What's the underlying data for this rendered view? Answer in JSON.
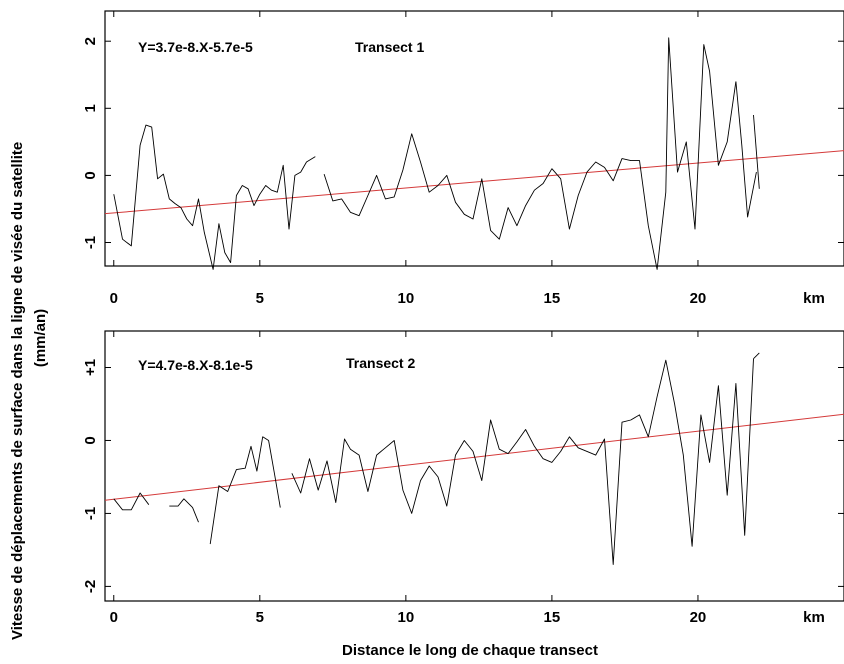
{
  "ylabel_line1": "Vitesse de déplacements de surface dans la ligne de visée du satellite",
  "ylabel_line2": "(mm/an)",
  "xlabel": "Distance le long de chaque transect",
  "colors": {
    "series": "#000000",
    "trend": "#d43a3a"
  },
  "chart_data": [
    {
      "type": "line",
      "title": "Transect 1",
      "equation": "Y=3.7e-8.X-5.7e-5",
      "x_unit": "km",
      "xlim": [
        -0.3,
        25
      ],
      "ylim": [
        -1.35,
        2.45
      ],
      "x_ticks": [
        0,
        5,
        10,
        15,
        20
      ],
      "x_tick_labels": [
        "0",
        "5",
        "10",
        "15",
        "20"
      ],
      "y_ticks": [
        -1,
        0,
        1,
        2
      ],
      "y_tick_labels": [
        "-1",
        "0",
        "1",
        "2"
      ],
      "trend": {
        "x": [
          -0.3,
          25
        ],
        "y": [
          -0.57,
          0.37
        ]
      },
      "segments": [
        {
          "x": [
            0,
            0.3,
            0.6,
            0.9,
            1.1,
            1.3,
            1.5,
            1.7,
            1.9,
            2.1,
            2.3,
            2.5,
            2.7,
            2.9,
            3.1,
            3.4,
            3.6,
            3.8,
            4.0,
            4.2,
            4.4,
            4.6,
            4.8,
            5.0,
            5.2,
            5.4,
            5.6,
            5.8,
            6.0,
            6.2,
            6.4,
            6.6,
            6.9
          ],
          "y": [
            -0.28,
            -0.95,
            -1.05,
            0.45,
            0.75,
            0.72,
            -0.05,
            0.02,
            -0.35,
            -0.42,
            -0.48,
            -0.65,
            -0.75,
            -0.35,
            -0.85,
            -1.4,
            -0.72,
            -1.15,
            -1.3,
            -0.3,
            -0.15,
            -0.2,
            -0.45,
            -0.28,
            -0.15,
            -0.22,
            -0.25,
            0.15,
            -0.8,
            0.0,
            0.05,
            0.2,
            0.28
          ]
        },
        {
          "x": [
            7.2,
            7.5,
            7.8,
            8.1,
            8.4,
            8.7,
            9.0,
            9.3,
            9.6,
            9.9,
            10.2,
            10.5,
            10.8,
            11.1,
            11.4,
            11.7,
            12.0,
            12.3,
            12.6,
            12.9,
            13.2,
            13.5,
            13.8,
            14.1,
            14.4,
            14.7,
            15.0,
            15.3,
            15.6,
            15.9,
            16.2,
            16.5,
            16.8,
            17.1,
            17.4,
            17.7,
            18.0,
            18.3,
            18.6,
            18.9,
            19.0,
            19.3,
            19.6,
            19.9,
            20.2,
            20.4,
            20.7,
            21.0,
            21.3
          ],
          "y": [
            0.02,
            -0.38,
            -0.35,
            -0.55,
            -0.6,
            -0.3,
            0.0,
            -0.35,
            -0.32,
            0.08,
            0.62,
            0.2,
            -0.25,
            -0.15,
            0.0,
            -0.4,
            -0.58,
            -0.65,
            -0.05,
            -0.82,
            -0.95,
            -0.48,
            -0.75,
            -0.45,
            -0.22,
            -0.12,
            0.1,
            -0.05,
            -0.8,
            -0.3,
            0.05,
            0.2,
            0.12,
            -0.08,
            0.25,
            0.22,
            0.22,
            -0.75,
            -1.4,
            -0.25,
            2.05,
            0.05,
            0.5,
            -0.8,
            1.95,
            1.55,
            0.15,
            0.5,
            1.4
          ]
        },
        {
          "x": [
            21.3,
            21.5,
            21.7,
            22.0
          ],
          "y": [
            1.4,
            0.45,
            -0.62,
            0.05
          ]
        },
        {
          "x": [
            21.9,
            22.1
          ],
          "y": [
            0.9,
            -0.2
          ]
        }
      ]
    },
    {
      "type": "line",
      "title": "Transect 2",
      "equation": "Y=4.7e-8.X-8.1e-5",
      "x_unit": "km",
      "xlim": [
        -0.3,
        25
      ],
      "ylim": [
        -2.2,
        1.5
      ],
      "x_ticks": [
        0,
        5,
        10,
        15,
        20
      ],
      "x_tick_labels": [
        "0",
        "5",
        "10",
        "15",
        "20"
      ],
      "y_ticks": [
        -2,
        -1,
        0,
        1
      ],
      "y_tick_labels": [
        "-2",
        "-1",
        "0",
        "+1"
      ],
      "trend": {
        "x": [
          -0.3,
          25
        ],
        "y": [
          -0.82,
          0.36
        ]
      },
      "segments": [
        {
          "x": [
            0,
            0.3,
            0.6,
            0.9,
            1.2
          ],
          "y": [
            -0.8,
            -0.95,
            -0.95,
            -0.72,
            -0.88
          ]
        },
        {
          "x": [
            1.9,
            2.2,
            2.4,
            2.7,
            2.9
          ],
          "y": [
            -0.9,
            -0.9,
            -0.8,
            -0.92,
            -1.12
          ]
        },
        {
          "x": [
            3.3,
            3.6,
            3.9,
            4.2,
            4.5,
            4.7,
            4.9,
            5.1,
            5.3,
            5.5,
            5.7
          ],
          "y": [
            -1.42,
            -0.62,
            -0.7,
            -0.4,
            -0.38,
            -0.08,
            -0.42,
            0.05,
            0.0,
            -0.45,
            -0.92
          ]
        },
        {
          "x": [
            6.1,
            6.4,
            6.7,
            7.0,
            7.3,
            7.6,
            7.9,
            8.1,
            8.4,
            8.7,
            9.0,
            9.3,
            9.6,
            9.9,
            10.2,
            10.5,
            10.8,
            11.1,
            11.4,
            11.7,
            12.0,
            12.3,
            12.6,
            12.9,
            13.2,
            13.5,
            13.8,
            14.1,
            14.4,
            14.7,
            15.0,
            15.3,
            15.6,
            15.9,
            16.2,
            16.5,
            16.8,
            17.1,
            17.4,
            17.7,
            18.0,
            18.3,
            18.6,
            18.9,
            19.2,
            19.5,
            19.8,
            20.1,
            20.4,
            20.7,
            21.0,
            21.3,
            21.6,
            21.9
          ],
          "y": [
            -0.45,
            -0.72,
            -0.25,
            -0.68,
            -0.28,
            -0.85,
            0.02,
            -0.12,
            -0.2,
            -0.7,
            -0.2,
            -0.1,
            0.0,
            -0.68,
            -1.0,
            -0.55,
            -0.35,
            -0.5,
            -0.9,
            -0.2,
            0.0,
            -0.15,
            -0.55,
            0.28,
            -0.12,
            -0.18,
            -0.02,
            0.15,
            -0.08,
            -0.25,
            -0.3,
            -0.15,
            0.05,
            -0.1,
            -0.15,
            -0.2,
            0.02,
            -1.7,
            0.25,
            0.28,
            0.35,
            0.05,
            0.6,
            1.1,
            0.5,
            -0.2,
            -1.45,
            0.35,
            -0.3,
            0.75,
            -0.75,
            0.78,
            -1.3,
            1.12
          ]
        },
        {
          "x": [
            21.9,
            22.1
          ],
          "y": [
            1.12,
            1.2
          ]
        }
      ]
    }
  ]
}
